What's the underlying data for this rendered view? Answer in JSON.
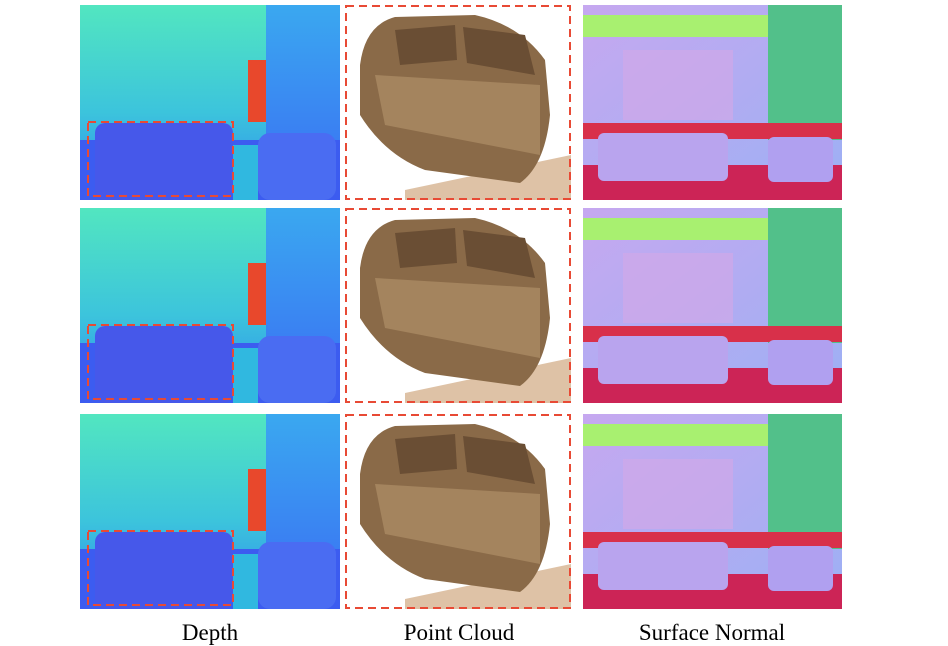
{
  "captions": [
    "Depth",
    "Point Cloud",
    "Surface Normal"
  ]
}
